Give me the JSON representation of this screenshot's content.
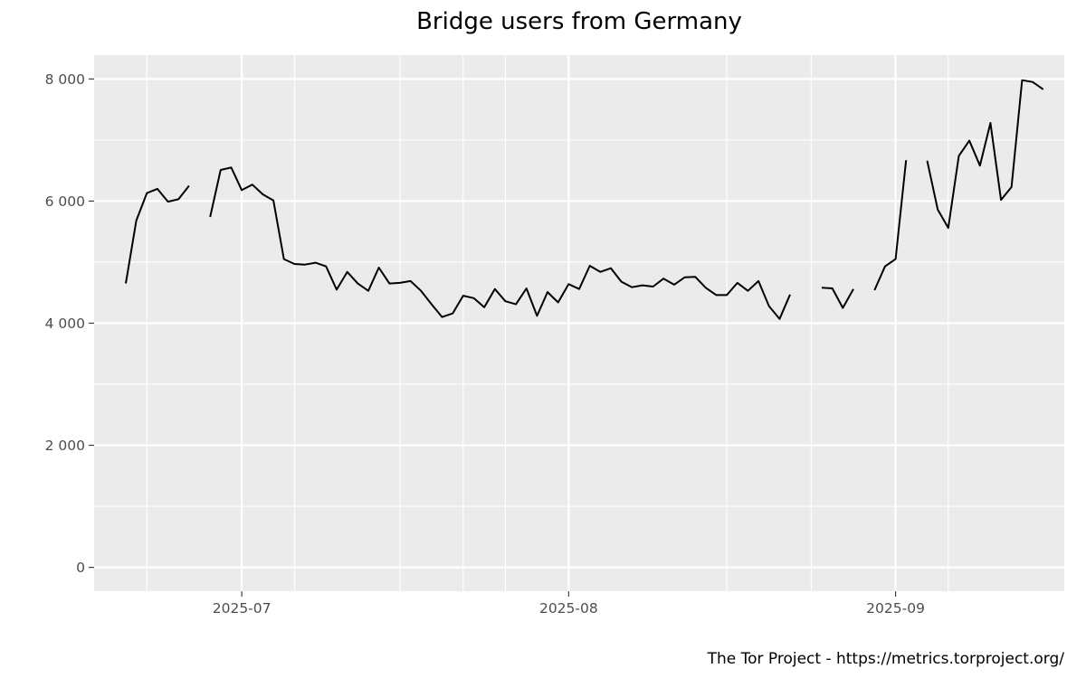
{
  "chart_data": {
    "type": "line",
    "title": "Bridge users from Germany",
    "caption": "The Tor Project - https://metrics.torproject.org/",
    "xlabel": "",
    "ylabel": "",
    "ylim": [
      0,
      8000
    ],
    "xlim": [
      "2025-06-17",
      "2025-09-17"
    ],
    "y_ticks": [
      {
        "value": 0,
        "label": "0"
      },
      {
        "value": 2000,
        "label": "2 000"
      },
      {
        "value": 4000,
        "label": "4 000"
      },
      {
        "value": 6000,
        "label": "6 000"
      },
      {
        "value": 8000,
        "label": "8 000"
      }
    ],
    "y_minor_ticks": [
      1000,
      3000,
      5000,
      7000
    ],
    "x_ticks": [
      {
        "value": "2025-07-01",
        "label": "2025-07"
      },
      {
        "value": "2025-08-01",
        "label": "2025-08"
      },
      {
        "value": "2025-09-01",
        "label": "2025-09"
      }
    ],
    "x_minor_ticks": [
      "2025-06-22",
      "2025-07-06",
      "2025-07-16",
      "2025-07-22",
      "2025-07-26",
      "2025-08-16",
      "2025-08-24",
      "2025-09-06"
    ],
    "background": "#ebebeb",
    "grid": true,
    "line_color": "#000000",
    "series": [
      {
        "segments": [
          {
            "x": [
              "2025-06-20",
              "2025-06-21",
              "2025-06-22",
              "2025-06-23",
              "2025-06-24",
              "2025-06-25",
              "2025-06-26"
            ],
            "y": [
              4650,
              5680,
              6130,
              6200,
              5990,
              6030,
              6250
            ]
          },
          {
            "x": [
              "2025-06-28",
              "2025-06-29",
              "2025-06-30",
              "2025-07-01",
              "2025-07-02",
              "2025-07-03",
              "2025-07-04",
              "2025-07-05",
              "2025-07-06",
              "2025-07-07",
              "2025-07-08",
              "2025-07-09",
              "2025-07-10",
              "2025-07-11",
              "2025-07-12",
              "2025-07-13",
              "2025-07-14",
              "2025-07-15",
              "2025-07-16",
              "2025-07-17",
              "2025-07-18",
              "2025-07-19",
              "2025-07-20",
              "2025-07-21",
              "2025-07-22",
              "2025-07-23",
              "2025-07-24",
              "2025-07-25",
              "2025-07-26",
              "2025-07-27",
              "2025-07-28",
              "2025-07-29",
              "2025-07-30",
              "2025-07-31",
              "2025-08-01",
              "2025-08-02",
              "2025-08-03",
              "2025-08-04",
              "2025-08-05",
              "2025-08-06",
              "2025-08-07",
              "2025-08-08",
              "2025-08-09",
              "2025-08-10",
              "2025-08-11",
              "2025-08-12",
              "2025-08-13",
              "2025-08-14",
              "2025-08-15",
              "2025-08-16",
              "2025-08-17",
              "2025-08-18",
              "2025-08-19",
              "2025-08-20",
              "2025-08-21",
              "2025-08-22"
            ],
            "y": [
              5740,
              6510,
              6550,
              6180,
              6270,
              6110,
              6010,
              5050,
              4970,
              4960,
              4990,
              4930,
              4550,
              4840,
              4650,
              4530,
              4910,
              4650,
              4660,
              4690,
              4530,
              4310,
              4100,
              4160,
              4450,
              4410,
              4260,
              4560,
              4360,
              4310,
              4570,
              4120,
              4510,
              4340,
              4640,
              4560,
              4940,
              4840,
              4900,
              4680,
              4590,
              4620,
              4600,
              4730,
              4630,
              4750,
              4760,
              4580,
              4460,
              4460,
              4660,
              4530,
              4690,
              4280,
              4070,
              4470
            ]
          },
          {
            "x": [
              "2025-08-25",
              "2025-08-26",
              "2025-08-27",
              "2025-08-28"
            ],
            "y": [
              4580,
              4570,
              4250,
              4560
            ]
          },
          {
            "x": [
              "2025-08-30",
              "2025-08-31",
              "2025-09-01",
              "2025-09-02"
            ],
            "y": [
              4540,
              4930,
              5050,
              6670
            ]
          },
          {
            "x": [
              "2025-09-04",
              "2025-09-05",
              "2025-09-06",
              "2025-09-07",
              "2025-09-08",
              "2025-09-09",
              "2025-09-10",
              "2025-09-11",
              "2025-09-12",
              "2025-09-13",
              "2025-09-14",
              "2025-09-15"
            ],
            "y": [
              6660,
              5860,
              5560,
              6740,
              6990,
              6580,
              7280,
              6020,
              6230,
              7980,
              7950,
              7830
            ]
          }
        ]
      }
    ]
  }
}
